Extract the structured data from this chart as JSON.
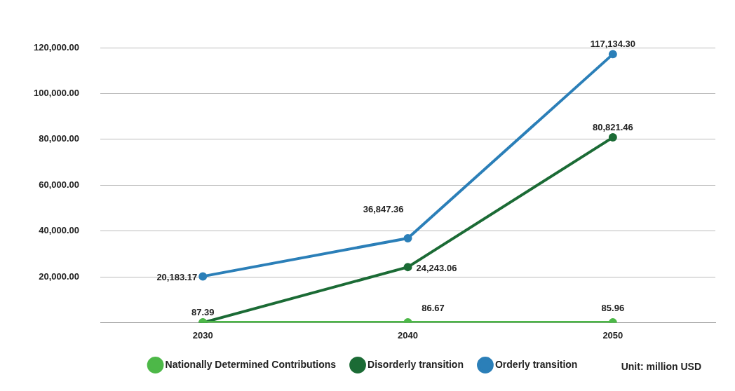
{
  "chart_data": {
    "type": "line",
    "categories": [
      "2030",
      "2040",
      "2050"
    ],
    "series": [
      {
        "name": "Nationally Determined Contributions",
        "color": "#4db848",
        "values": [
          87.39,
          86.67,
          85.96
        ],
        "value_labels": [
          "87.39",
          "86.67",
          "85.96"
        ]
      },
      {
        "name": "Disorderly transition",
        "color": "#1b6b35",
        "values": [
          0,
          24243.06,
          80821.46
        ],
        "value_labels": [
          null,
          "24,243.06",
          "80,821.46"
        ]
      },
      {
        "name": "Orderly transition",
        "color": "#2b7fb8",
        "values": [
          20183.17,
          36847.36,
          117134.3
        ],
        "value_labels": [
          "20,183.17",
          "36,847.36",
          "117,134.30"
        ]
      }
    ],
    "ylim": [
      0,
      120000
    ],
    "yticks": [
      {
        "value": 0,
        "label": null
      },
      {
        "value": 20000,
        "label": "20,000.00"
      },
      {
        "value": 40000,
        "label": "40,000.00"
      },
      {
        "value": 60000,
        "label": "60,000.00"
      },
      {
        "value": 80000,
        "label": "80,000.00"
      },
      {
        "value": 100000,
        "label": "100,000.00"
      },
      {
        "value": 120000,
        "label": "120,000.00"
      }
    ],
    "grid": "y",
    "legend": "bottom",
    "marker": "circle",
    "line_style": "solid",
    "annotations": [
      "Unit: million USD"
    ]
  }
}
